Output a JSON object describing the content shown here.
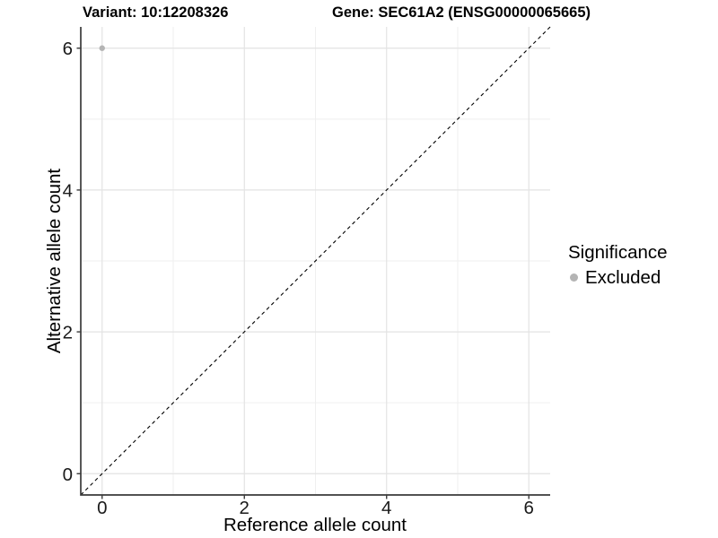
{
  "chart_data": {
    "type": "scatter",
    "title_left": "Variant: 10:12208326",
    "title_right": "Gene: SEC61A2 (ENSG00000065665)",
    "xlabel": "Reference allele count",
    "ylabel": "Alternative allele count",
    "xlim": [
      -0.3,
      6.3
    ],
    "ylim": [
      -0.3,
      6.3
    ],
    "x_ticks": [
      0,
      2,
      4,
      6
    ],
    "y_ticks": [
      0,
      2,
      4,
      6
    ],
    "x_minor_ticks": [
      1,
      3,
      5
    ],
    "y_minor_ticks": [
      1,
      3,
      5
    ],
    "grid": "major+minor",
    "reference_line": {
      "style": "dashed",
      "color": "#000000",
      "from": [
        -0.3,
        -0.3
      ],
      "to": [
        6.3,
        6.3
      ]
    },
    "series": [
      {
        "name": "Excluded",
        "color": "#b4b4b4",
        "points": [
          [
            0,
            6
          ]
        ]
      }
    ],
    "legend": {
      "title": "Significance",
      "position": "right",
      "items": [
        {
          "label": "Excluded",
          "color": "#b4b4b4"
        }
      ]
    },
    "styles": {
      "axis_color": "#3a3a3a",
      "grid_major_color": "#e3e3e3",
      "grid_minor_color": "#efefef",
      "tick_label_color": "#1a1a1a",
      "background": "#ffffff"
    }
  }
}
